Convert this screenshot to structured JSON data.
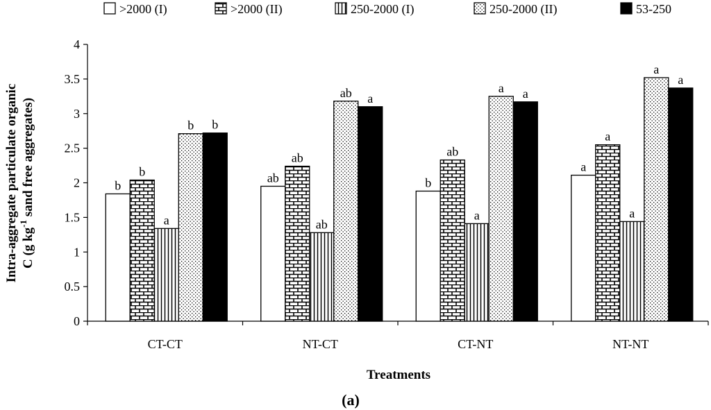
{
  "chart_data": {
    "type": "bar",
    "title": "",
    "caption": "(a)",
    "xlabel": "Treatments",
    "ylabel_line1": "Intra-aggregate particulate organic",
    "ylabel_line2": "C (g kg",
    "ylabel_sup": "-1",
    "ylabel_line2_tail": " sand free aggregates)",
    "ylim": [
      0,
      4
    ],
    "yticks": [
      "0",
      "0.5",
      "1",
      "1.5",
      "2",
      "2.5",
      "3",
      "3.5",
      "4"
    ],
    "legend_position": "top",
    "grid": false,
    "categories": [
      "CT-CT",
      "NT-CT",
      "CT-NT",
      "NT-NT"
    ],
    "series": [
      {
        "name": ">2000 (I)",
        "pattern": "none",
        "values": [
          1.84,
          1.95,
          1.88,
          2.11
        ],
        "letters": [
          "b",
          "ab",
          "b",
          "a"
        ]
      },
      {
        "name": ">2000 (II)",
        "pattern": "brick",
        "values": [
          2.04,
          2.24,
          2.33,
          2.55
        ],
        "letters": [
          "b",
          "ab",
          "ab",
          "a"
        ]
      },
      {
        "name": "250-2000 (I)",
        "pattern": "vlines",
        "values": [
          1.34,
          1.28,
          1.41,
          1.44
        ],
        "letters": [
          "a",
          "ab",
          "a",
          "a"
        ]
      },
      {
        "name": "250-2000 (II)",
        "pattern": "dots",
        "values": [
          2.71,
          3.18,
          3.25,
          3.52
        ],
        "letters": [
          "b",
          "ab",
          "a",
          "a"
        ]
      },
      {
        "name": "53-250",
        "pattern": "solid",
        "values": [
          2.72,
          3.1,
          3.17,
          3.37
        ],
        "letters": [
          "b",
          "a",
          "a",
          "a"
        ]
      }
    ]
  }
}
